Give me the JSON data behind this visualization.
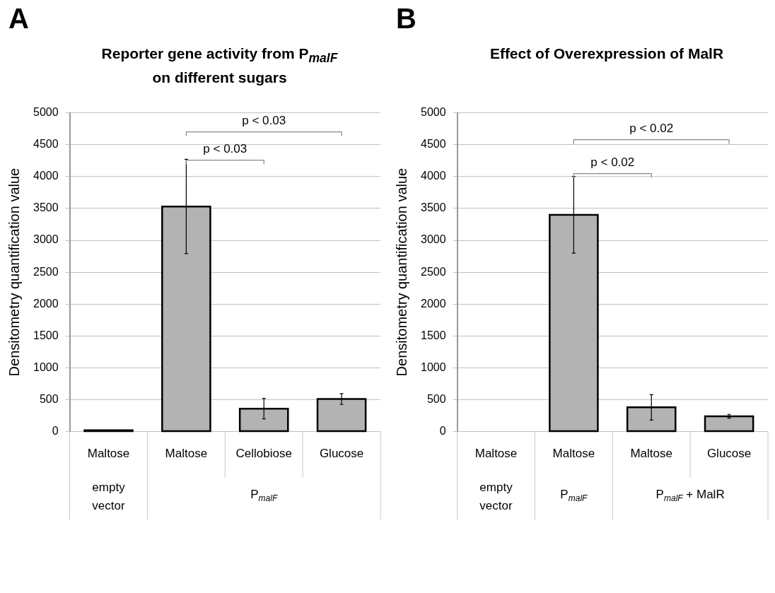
{
  "chart_data": [
    {
      "type": "bar",
      "title": "Reporter gene activity from P$_{malF}$ on different sugars",
      "ylabel": "Densitometry quantification value",
      "categories": [
        "Maltose",
        "Maltose",
        "Cellobiose",
        "Glucose"
      ],
      "values": [
        20,
        3530,
        360,
        510
      ],
      "errors": [
        null,
        740,
        160,
        85
      ],
      "color": "#b3b3b3",
      "ylim": [
        0,
        5000
      ],
      "yticks": [
        0,
        500,
        1000,
        1500,
        2000,
        2500,
        3000,
        3500,
        4000,
        4500,
        5000
      ],
      "grid": "y",
      "legend": false,
      "annotations": [
        "A",
        "p < 0.03",
        "p < 0.03",
        "empty vector",
        "P$_{malF}$"
      ]
    },
    {
      "type": "bar",
      "title": "Effect of Overexpression of MalR",
      "ylabel": "Densitometry quantification value",
      "categories": [
        "Maltose",
        "Maltose",
        "Maltose",
        "Glucose"
      ],
      "values": [
        0,
        3400,
        380,
        240
      ],
      "errors": [
        null,
        600,
        200,
        30
      ],
      "color": "#b3b3b3",
      "ylim": [
        0,
        5000
      ],
      "yticks": [
        0,
        500,
        1000,
        1500,
        2000,
        2500,
        3000,
        3500,
        4000,
        4500,
        5000
      ],
      "grid": "y",
      "legend": false,
      "annotations": [
        "B",
        "p < 0.02",
        "p < 0.02",
        "empty vector",
        "P$_{malF}$",
        "P$_{malF}$ + MalR"
      ]
    }
  ]
}
